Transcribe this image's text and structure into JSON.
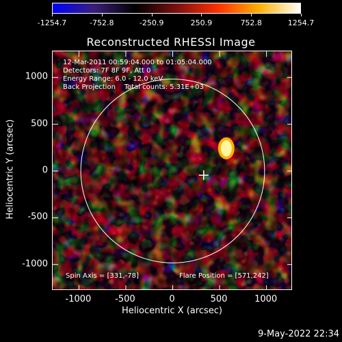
{
  "colorbar": {
    "tick_labels": [
      "-1254.7",
      "-752.8",
      "-250.9",
      "250.9",
      "752.8",
      "1254.7"
    ],
    "range": [
      -1254.7,
      1254.7
    ],
    "colors": [
      "#0000ff",
      "#3a1f7a",
      "#000000",
      "#7a1010",
      "#ff3000",
      "#ffb000",
      "#ffffff"
    ]
  },
  "title": "Reconstructed RHESSI Image",
  "info": {
    "line1": "12-Mar-2011 00:59:04.000 to 01:05:04.000",
    "line2": "Detectors: 7F 8F 9F, Att 0",
    "line3": "Energy Range: 6.0 - 12.0 keV",
    "line4": "Back Projection    Total counts: 5.31E+03",
    "spin_axis": "Spin Axis = [331,-78]",
    "flare_position": "Flare Position = [571,242]"
  },
  "axes": {
    "xlabel": "Heliocentric X (arcsec)",
    "ylabel": "Heliocentric Y (arcsec)",
    "xticks": [
      "-1000",
      "-500",
      "0",
      "500",
      "1000"
    ],
    "yticks": [
      "1000",
      "500",
      "0",
      "-500",
      "-1000"
    ],
    "xlim": [
      -1280,
      1280
    ],
    "ylim": [
      -1280,
      1280
    ]
  },
  "chart_data": {
    "type": "heatmap",
    "title": "Reconstructed RHESSI Image",
    "xlabel": "Heliocentric X (arcsec)",
    "ylabel": "Heliocentric Y (arcsec)",
    "xlim": [
      -1280,
      1280
    ],
    "ylim": [
      -1280,
      1280
    ],
    "solar_limb_radius": 980,
    "marker_position": [
      330,
      -45
    ],
    "hot_spot": [
      571,
      242
    ]
  },
  "footer_date": "9-May-2022 22:34"
}
